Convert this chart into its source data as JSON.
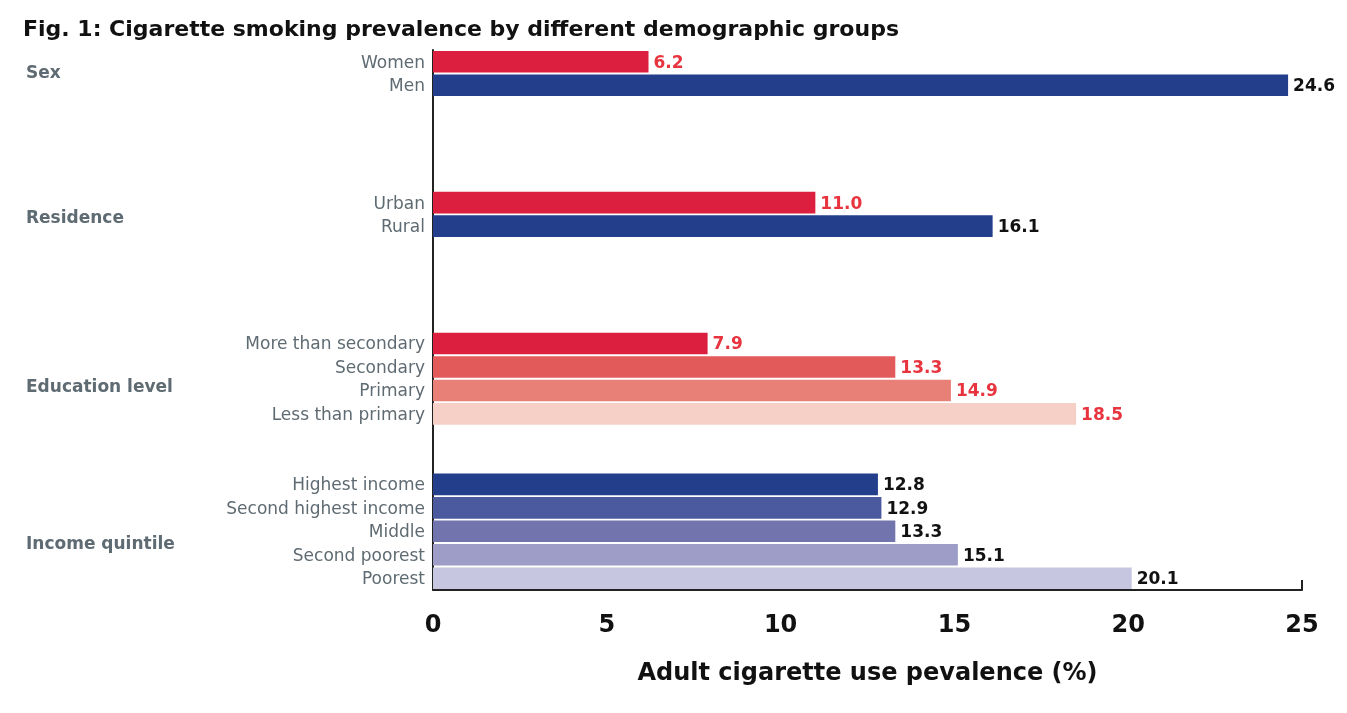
{
  "chart_data": {
    "type": "bar",
    "orientation": "horizontal",
    "title": "Fig. 1: Cigarette smoking prevalence by different demographic groups",
    "xlabel": "Adult cigarette use pevalence (%)",
    "annotations": [
      "Sex",
      "Residence",
      "Education level",
      "Income quintile"
    ],
    "categories": [
      "Women",
      "Men",
      null,
      null,
      null,
      null,
      "Urban",
      "Rural",
      null,
      null,
      null,
      null,
      "More than secondary",
      "Secondary",
      "Primary",
      "Less than primary",
      null,
      null,
      "Highest income",
      "Second highest income",
      "Middle",
      "Second poorest",
      "Poorest"
    ],
    "values": [
      6.2,
      24.6,
      null,
      null,
      null,
      null,
      11.0,
      16.1,
      null,
      null,
      null,
      null,
      7.9,
      13.3,
      14.9,
      18.5,
      null,
      null,
      12.8,
      12.9,
      13.3,
      15.1,
      20.1
    ],
    "value_labels": [
      "6.2",
      "24.6",
      null,
      null,
      null,
      null,
      "11.0",
      "16.1",
      null,
      null,
      null,
      null,
      "7.9",
      "13.3",
      "14.9",
      "18.5",
      null,
      null,
      "12.8",
      "12.9",
      "13.3",
      "15.1",
      "20.1"
    ],
    "colors": [
      "#dc1f3f",
      "#233f8c",
      null,
      null,
      null,
      null,
      "#dc1f3f",
      "#233f8c",
      null,
      null,
      null,
      null,
      "#dc1f3f",
      "#e35a5a",
      "#e88077",
      "#f6cfc7",
      null,
      null,
      "#233f8c",
      "#4b5a9e",
      "#7274ae",
      "#9d9dc8",
      "#c6c6e0"
    ],
    "xlim": [
      0,
      25
    ],
    "xticks": [
      0,
      5,
      10,
      15,
      20,
      25
    ],
    "grid": false
  }
}
